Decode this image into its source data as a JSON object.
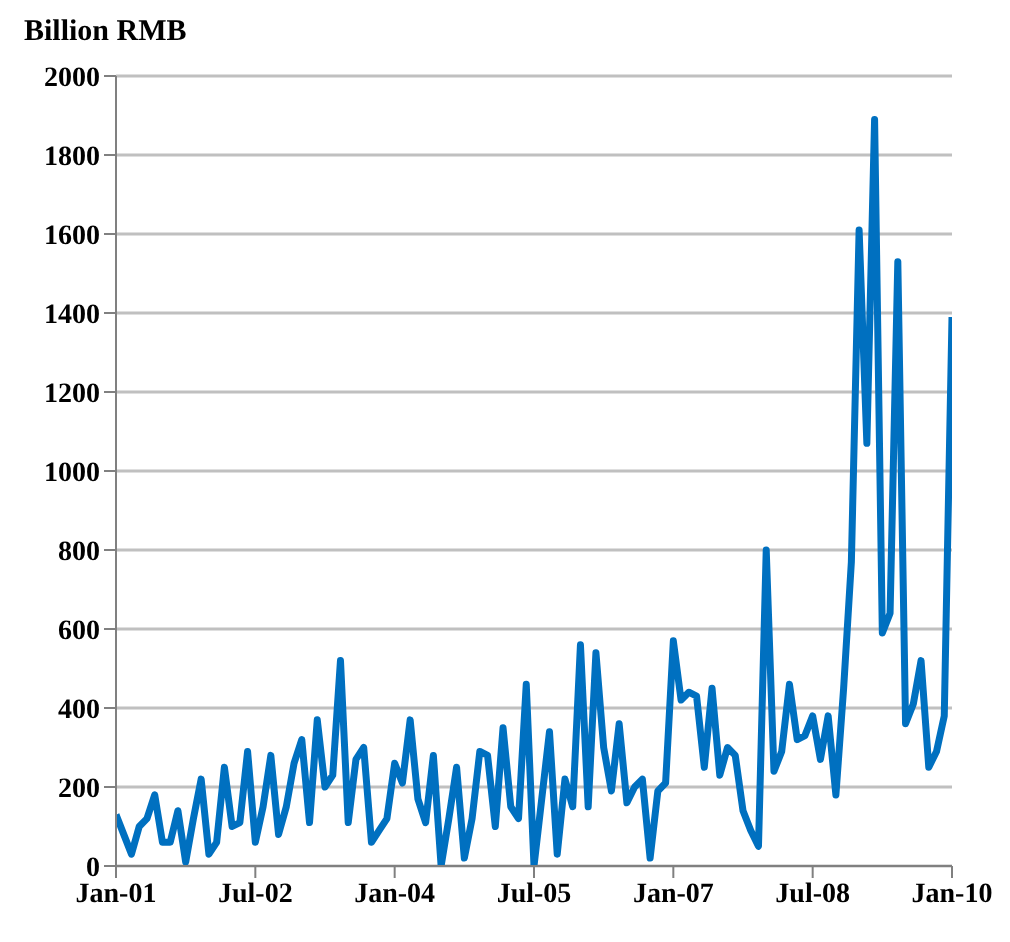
{
  "chart_data": {
    "type": "line",
    "ylabel": "Billion RMB",
    "x": [
      "2001-01",
      "2001-02",
      "2001-03",
      "2001-04",
      "2001-05",
      "2001-06",
      "2001-07",
      "2001-08",
      "2001-09",
      "2001-10",
      "2001-11",
      "2001-12",
      "2002-01",
      "2002-02",
      "2002-03",
      "2002-04",
      "2002-05",
      "2002-06",
      "2002-07",
      "2002-08",
      "2002-09",
      "2002-10",
      "2002-11",
      "2002-12",
      "2003-01",
      "2003-02",
      "2003-03",
      "2003-04",
      "2003-05",
      "2003-06",
      "2003-07",
      "2003-08",
      "2003-09",
      "2003-10",
      "2003-11",
      "2003-12",
      "2004-01",
      "2004-02",
      "2004-03",
      "2004-04",
      "2004-05",
      "2004-06",
      "2004-07",
      "2004-08",
      "2004-09",
      "2004-10",
      "2004-11",
      "2004-12",
      "2005-01",
      "2005-02",
      "2005-03",
      "2005-04",
      "2005-05",
      "2005-06",
      "2005-07",
      "2005-08",
      "2005-09",
      "2005-10",
      "2005-11",
      "2005-12",
      "2006-01",
      "2006-02",
      "2006-03",
      "2006-04",
      "2006-05",
      "2006-06",
      "2006-07",
      "2006-08",
      "2006-09",
      "2006-10",
      "2006-11",
      "2006-12",
      "2007-01",
      "2007-02",
      "2007-03",
      "2007-04",
      "2007-05",
      "2007-06",
      "2007-07",
      "2007-08",
      "2007-09",
      "2007-10",
      "2007-11",
      "2007-12",
      "2008-01",
      "2008-02",
      "2008-03",
      "2008-04",
      "2008-05",
      "2008-06",
      "2008-07",
      "2008-08",
      "2008-09",
      "2008-10",
      "2008-11",
      "2008-12",
      "2009-01",
      "2009-02",
      "2009-03",
      "2009-04",
      "2009-05",
      "2009-06",
      "2009-07",
      "2009-08",
      "2009-09",
      "2009-10",
      "2009-11",
      "2009-12",
      "2010-01"
    ],
    "series": [
      {
        "color": "#0070c0",
        "values": [
          130,
          80,
          30,
          100,
          120,
          180,
          60,
          60,
          140,
          10,
          120,
          220,
          30,
          60,
          250,
          100,
          110,
          290,
          60,
          150,
          280,
          80,
          150,
          260,
          320,
          110,
          370,
          200,
          230,
          520,
          110,
          270,
          300,
          60,
          90,
          120,
          260,
          210,
          370,
          170,
          110,
          280,
          0,
          120,
          250,
          20,
          120,
          290,
          280,
          100,
          350,
          150,
          120,
          460,
          0,
          170,
          340,
          30,
          220,
          150,
          560,
          150,
          540,
          300,
          190,
          360,
          160,
          200,
          220,
          20,
          190,
          210,
          570,
          420,
          440,
          430,
          250,
          450,
          230,
          300,
          280,
          140,
          90,
          50,
          800,
          240,
          290,
          460,
          320,
          330,
          380,
          270,
          380,
          180,
          450,
          770,
          1610,
          1070,
          1890,
          590,
          640,
          1530,
          360,
          410,
          520,
          250,
          290,
          380,
          1390
        ]
      }
    ],
    "xlim": [
      "2001-01",
      "2010-01"
    ],
    "xticks": [
      {
        "value": "2001-01",
        "label": "Jan-01"
      },
      {
        "value": "2002-07",
        "label": "Jul-02"
      },
      {
        "value": "2004-01",
        "label": "Jan-04"
      },
      {
        "value": "2005-07",
        "label": "Jul-05"
      },
      {
        "value": "2007-01",
        "label": "Jan-07"
      },
      {
        "value": "2008-07",
        "label": "Jul-08"
      },
      {
        "value": "2010-01",
        "label": "Jan-10"
      }
    ],
    "ylim": [
      0,
      2000
    ],
    "yticks": [
      0,
      200,
      400,
      600,
      800,
      1000,
      1200,
      1400,
      1600,
      1800,
      2000
    ],
    "grid": "y",
    "marker": "none",
    "line_style": "solid",
    "legend": false
  }
}
